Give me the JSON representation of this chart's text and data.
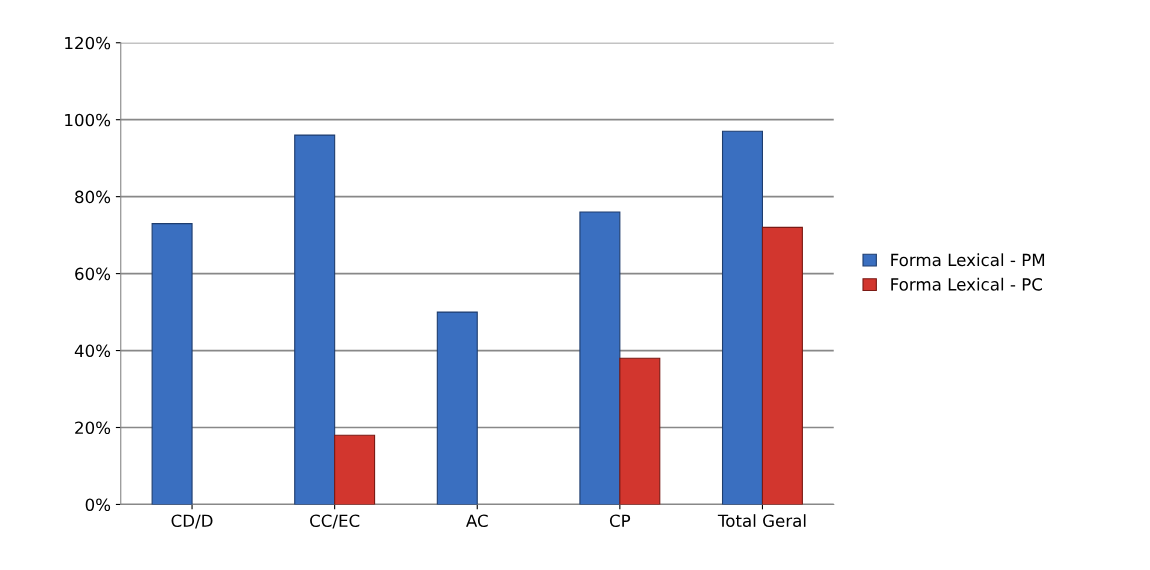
{
  "chart_data": {
    "type": "bar",
    "categories": [
      "CD/D",
      "CC/EC",
      "AC",
      "CP",
      "Total Geral"
    ],
    "series": [
      {
        "name": "Forma Lexical - PM",
        "color": "#3a6fc0",
        "values": [
          73,
          96,
          50,
          76,
          97
        ]
      },
      {
        "name": "Forma Lexical - PC",
        "color": "#d2362e",
        "values": [
          null,
          18,
          null,
          38,
          72
        ]
      }
    ],
    "ylim": [
      0,
      120
    ],
    "yticks": [
      {
        "value": 0,
        "label": "0%"
      },
      {
        "value": 20,
        "label": "20%"
      },
      {
        "value": 40,
        "label": "40%"
      },
      {
        "value": 60,
        "label": "60%"
      },
      {
        "value": 80,
        "label": "80%"
      },
      {
        "value": 100,
        "label": "100%"
      },
      {
        "value": 120,
        "label": "120%"
      }
    ],
    "grid": "y",
    "legend": "right"
  }
}
